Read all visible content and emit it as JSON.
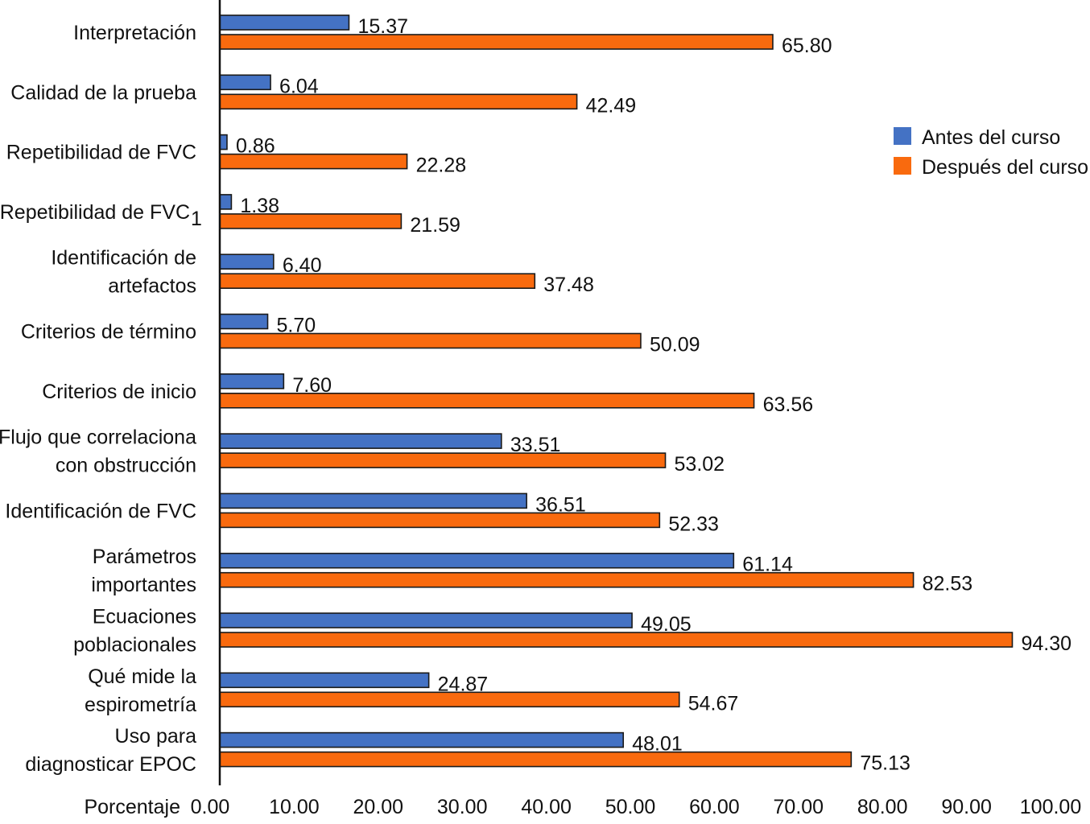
{
  "chart_data": {
    "type": "bar",
    "orientation": "horizontal",
    "title": "",
    "xlabel": "Porcentaje",
    "ylabel": "",
    "xlim": [
      0,
      100
    ],
    "grid": false,
    "legend_position": "top-right",
    "x_ticks": [
      "0.00",
      "10.00",
      "20.00",
      "30.00",
      "40.00",
      "50.00",
      "60.00",
      "70.00",
      "80.00",
      "90.00",
      "100.00"
    ],
    "x_tick_values": [
      0,
      10,
      20,
      30,
      40,
      50,
      60,
      70,
      80,
      90,
      100
    ],
    "categories": [
      {
        "lines": [
          "Interpretación"
        ]
      },
      {
        "lines": [
          "Calidad de la prueba"
        ]
      },
      {
        "lines": [
          "Repetibilidad de FVC"
        ]
      },
      {
        "lines": [
          "Repetibilidad de FVC"
        ],
        "subscript": "1"
      },
      {
        "lines": [
          "Identificación de",
          "artefactos"
        ]
      },
      {
        "lines": [
          "Criterios de término"
        ]
      },
      {
        "lines": [
          "Criterios de inicio"
        ]
      },
      {
        "lines": [
          "Flujo que correlaciona",
          "con obstrucción"
        ]
      },
      {
        "lines": [
          "Identificación de FVC"
        ]
      },
      {
        "lines": [
          "Parámetros",
          "importantes"
        ]
      },
      {
        "lines": [
          "Ecuaciones",
          "poblacionales"
        ]
      },
      {
        "lines": [
          "Qué mide la",
          "espirometría"
        ]
      },
      {
        "lines": [
          "Uso para",
          "diagnosticar EPOC"
        ]
      }
    ],
    "series": [
      {
        "name": "Antes del curso",
        "color": "#4472C4",
        "values": [
          15.37,
          6.04,
          0.86,
          1.38,
          6.4,
          5.7,
          7.6,
          33.51,
          36.51,
          61.14,
          49.05,
          24.87,
          48.01
        ],
        "labels": [
          "15.37",
          "6.04",
          "0.86",
          "1.38",
          "6.40",
          "5.70",
          "7.60",
          "33.51",
          "36.51",
          "61.14",
          "49.05",
          "24.87",
          "48.01"
        ]
      },
      {
        "name": "Después del curso",
        "color": "#F96A0E",
        "values": [
          65.8,
          42.49,
          22.28,
          21.59,
          37.48,
          50.09,
          63.56,
          53.02,
          52.33,
          82.53,
          94.3,
          54.67,
          75.13
        ],
        "labels": [
          "65.80",
          "42.49",
          "22.28",
          "21.59",
          "37.48",
          "50.09",
          "63.56",
          "53.02",
          "52.33",
          "82.53",
          "94.30",
          "54.67",
          "75.13"
        ]
      }
    ]
  }
}
